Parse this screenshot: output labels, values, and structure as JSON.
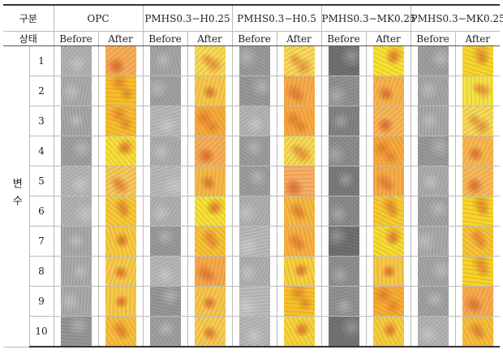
{
  "table": {
    "header": {
      "group_label": "구분",
      "groups": [
        "OPC",
        "PMHS0.3−H0.25",
        "PMHS0.3−H0.5",
        "PMHS0.3−MK0.25",
        "PMHS0.3−MK0.25"
      ],
      "state_label": "상태",
      "sub_headers": [
        "Before",
        "After",
        "Before",
        "After",
        "Before",
        "After",
        "Before",
        "After",
        "Before",
        "After"
      ],
      "variable_label": "변수"
    },
    "rows": [
      1,
      2,
      3,
      4,
      5,
      6,
      7,
      8,
      9,
      10
    ]
  }
}
